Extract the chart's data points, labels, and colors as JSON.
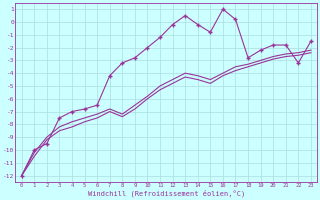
{
  "xlabel": "Windchill (Refroidissement éolien,°C)",
  "x": [
    0,
    1,
    2,
    3,
    4,
    5,
    6,
    7,
    8,
    9,
    10,
    11,
    12,
    13,
    14,
    15,
    16,
    17,
    18,
    19,
    20,
    21,
    22,
    23
  ],
  "line1_marked": [
    -12,
    -10,
    -9.5,
    -7.5,
    -7,
    -6.8,
    -6.5,
    -4.2,
    -3.2,
    -2.8,
    -2.0,
    -1.2,
    -0.2,
    0.5,
    -0.2,
    -0.8,
    1.0,
    0.2,
    -2.8,
    -2.2,
    -1.8,
    -1.8,
    -3.2,
    -1.5
  ],
  "line2_smooth": [
    -12,
    -10.2,
    -9.0,
    -8.2,
    -7.8,
    -7.5,
    -7.2,
    -6.8,
    -7.2,
    -6.5,
    -5.8,
    -5.0,
    -4.5,
    -4.0,
    -4.2,
    -4.5,
    -4.0,
    -3.5,
    -3.3,
    -3.0,
    -2.7,
    -2.5,
    -2.4,
    -2.2
  ],
  "line3_smooth": [
    -12,
    -10.5,
    -9.2,
    -8.5,
    -8.2,
    -7.8,
    -7.5,
    -7.0,
    -7.4,
    -6.8,
    -6.0,
    -5.3,
    -4.8,
    -4.3,
    -4.5,
    -4.8,
    -4.2,
    -3.8,
    -3.5,
    -3.2,
    -2.9,
    -2.7,
    -2.6,
    -2.4
  ],
  "line_color": "#993399",
  "marker": "+",
  "bg_color": "#ccffff",
  "grid_color": "#aadddd",
  "ylim": [
    -12.5,
    1.5
  ],
  "xlim": [
    -0.5,
    23.5
  ],
  "yticks": [
    1,
    0,
    -1,
    -2,
    -3,
    -4,
    -5,
    -6,
    -7,
    -8,
    -9,
    -10,
    -11,
    -12
  ],
  "xticks": [
    0,
    1,
    2,
    3,
    4,
    5,
    6,
    7,
    8,
    9,
    10,
    11,
    12,
    13,
    14,
    15,
    16,
    17,
    18,
    19,
    20,
    21,
    22,
    23
  ]
}
